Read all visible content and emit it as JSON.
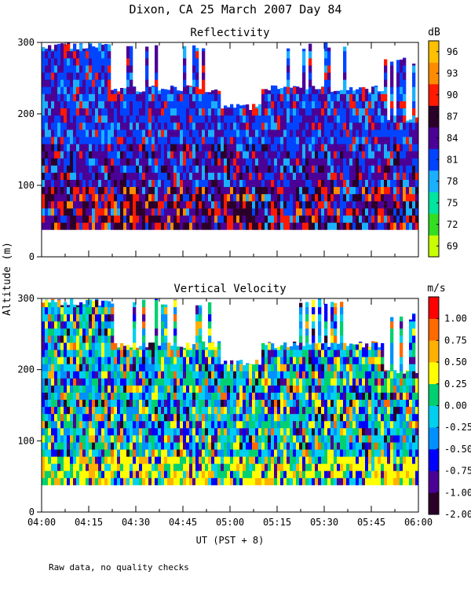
{
  "figure": {
    "title": "Dixon, CA 25 March 2007  Day  84",
    "footnote": "Raw data, no quality checks",
    "y_axis_label": "Altitude (m)",
    "x_axis_label": "UT  (PST + 8)"
  },
  "chart_data": [
    {
      "type": "heatmap",
      "title": "Reflectivity",
      "x_ticks": [
        "04:00",
        "04:15",
        "04:30",
        "04:45",
        "05:00",
        "05:15",
        "05:30",
        "05:45",
        "06:00"
      ],
      "xlim": [
        "04:00",
        "06:00"
      ],
      "y_ticks": [
        0,
        100,
        200,
        300
      ],
      "ylim": [
        0,
        300
      ],
      "data_bottom_m": 38,
      "colorbar": {
        "unit": "dB",
        "labels": [
          "96",
          "93",
          "90",
          "87",
          "84",
          "81",
          "78",
          "75",
          "72",
          "69"
        ],
        "range": [
          68,
          98
        ],
        "colors": [
          "#c8ff00",
          "#33dd22",
          "#00e6a0",
          "#1ab0ff",
          "#0044ff",
          "#4b0096",
          "#2a0028",
          "#ff1a00",
          "#ff8c00",
          "#ffc000"
        ]
      }
    },
    {
      "type": "heatmap",
      "title": "Vertical Velocity",
      "x_ticks": [
        "04:00",
        "04:15",
        "04:30",
        "04:45",
        "05:00",
        "05:15",
        "05:30",
        "05:45",
        "06:00"
      ],
      "xlim": [
        "04:00",
        "06:00"
      ],
      "y_ticks": [
        0,
        100,
        200,
        300
      ],
      "ylim": [
        0,
        300
      ],
      "data_bottom_m": 38,
      "colorbar": {
        "unit": "m/s",
        "labels": [
          "1.00",
          "0.75",
          "0.50",
          "0.25",
          "0.00",
          "-0.25",
          "-0.50",
          "-0.75",
          "-1.00",
          "-2.00"
        ],
        "colors": [
          "#2a0028",
          "#4b0096",
          "#0000ff",
          "#0090ff",
          "#00d0f0",
          "#00d070",
          "#ffff00",
          "#ffb000",
          "#ff6a00",
          "#ff0000"
        ]
      }
    }
  ]
}
